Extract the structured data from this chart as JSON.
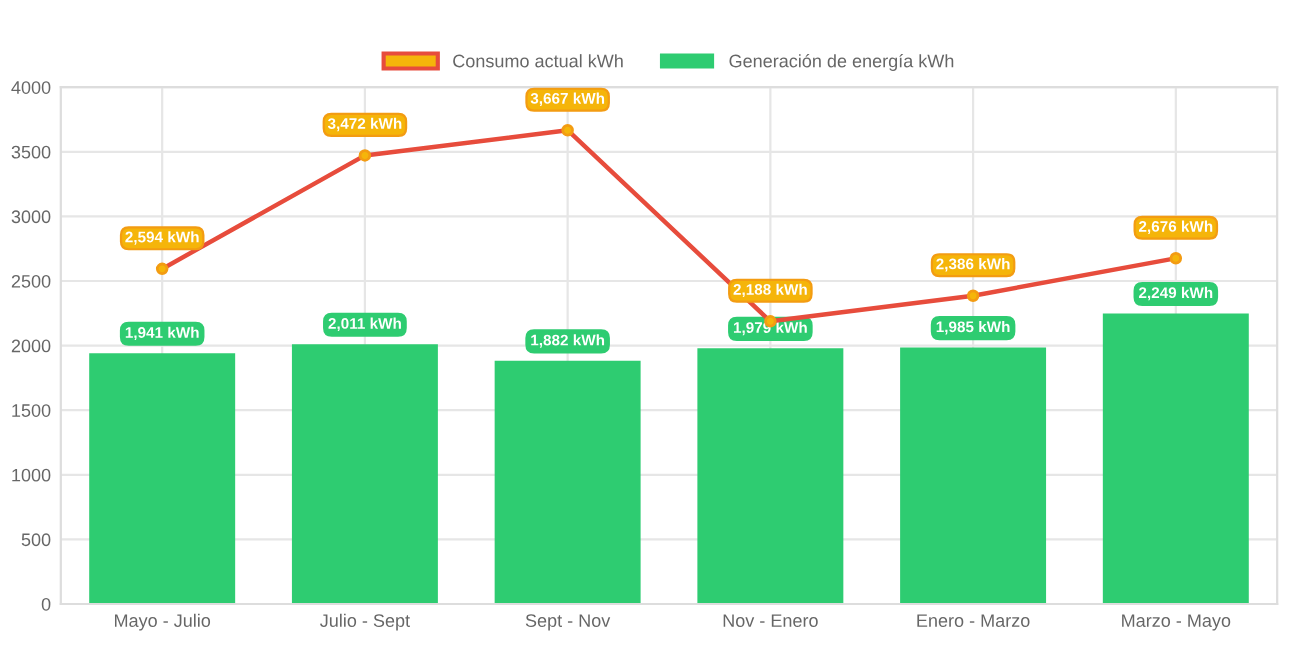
{
  "chart_data": {
    "type": "bar",
    "categories": [
      "Mayo - Julio",
      "Julio - Sept",
      "Sept - Nov",
      "Nov - Enero",
      "Enero - Marzo",
      "Marzo - Mayo"
    ],
    "series": [
      {
        "name": "Consumo actual kWh",
        "type": "line",
        "color": "#e74c3c",
        "marker": "circle",
        "values": [
          2594,
          3472,
          3667,
          2188,
          2386,
          2676
        ],
        "value_labels": [
          "2,594 kWh",
          "3,472 kWh",
          "3,667 kWh",
          "2,188 kWh",
          "2,386 kWh",
          "2,676 kWh"
        ]
      },
      {
        "name": "Generación de energía kWh",
        "color": "#2ecc71",
        "values": [
          1941,
          2011,
          1882,
          1979,
          1985,
          2249
        ],
        "value_labels": [
          "1,941 kWh",
          "2,011 kWh",
          "1,882 kWh",
          "1,979 kWh",
          "1,985 kWh",
          "2,249 kWh"
        ]
      }
    ],
    "ylim": [
      0,
      4000
    ],
    "yticks": [
      0,
      500,
      1000,
      1500,
      2000,
      2500,
      3000,
      3500,
      4000
    ],
    "grid": true,
    "legend": "top"
  }
}
